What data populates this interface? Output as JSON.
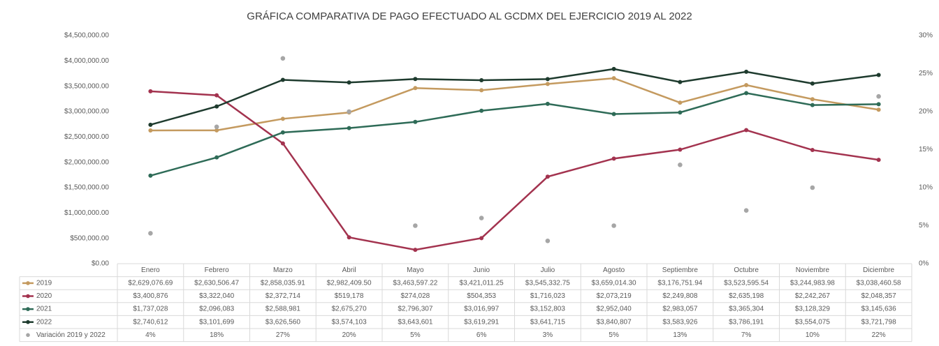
{
  "chart_data": {
    "type": "line",
    "title": "GRÁFICA COMPARATIVA DE PAGO EFECTUADO AL GCDMX DEL EJERCICIO 2019 AL 2022",
    "categories": [
      "Enero",
      "Febrero",
      "Marzo",
      "Abril",
      "Mayo",
      "Junio",
      "Julio",
      "Agosto",
      "Septiembre",
      "Octubre",
      "Noviembre",
      "Diciembre"
    ],
    "ylim": [
      0,
      4500000
    ],
    "yticks": [
      {
        "value": 0,
        "label": "$0.00"
      },
      {
        "value": 500000,
        "label": "$500,000.00"
      },
      {
        "value": 1000000,
        "label": "$1,000,000.00"
      },
      {
        "value": 1500000,
        "label": "$1,500,000.00"
      },
      {
        "value": 2000000,
        "label": "$2,000,000.00"
      },
      {
        "value": 2500000,
        "label": "$2,500,000.00"
      },
      {
        "value": 3000000,
        "label": "$3,000,000.00"
      },
      {
        "value": 3500000,
        "label": "$3,500,000.00"
      },
      {
        "value": 4000000,
        "label": "$4,000,000.00"
      },
      {
        "value": 4500000,
        "label": "$4,500,000.00"
      }
    ],
    "y2lim": [
      0,
      30
    ],
    "y2ticks": [
      {
        "value": 0,
        "label": "0%"
      },
      {
        "value": 5,
        "label": "5%"
      },
      {
        "value": 10,
        "label": "10%"
      },
      {
        "value": 15,
        "label": "15%"
      },
      {
        "value": 20,
        "label": "20%"
      },
      {
        "value": 25,
        "label": "25%"
      },
      {
        "value": 30,
        "label": "30%"
      }
    ],
    "data_table": true,
    "series": [
      {
        "name": "2019",
        "color": "#c49a5f",
        "values": [
          2629076.69,
          2630506.47,
          2858035.91,
          2982409.5,
          3463597.22,
          3421011.25,
          3545332.75,
          3659014.3,
          3176751.94,
          3523595.54,
          3244983.98,
          3038460.58
        ],
        "value_labels": [
          "$2,629,076.69",
          "$2,630,506.47",
          "$2,858,035.91",
          "$2,982,409.50",
          "$3,463,597.22",
          "$3,421,011.25",
          "$3,545,332.75",
          "$3,659,014.30",
          "$3,176,751.94",
          "$3,523,595.54",
          "$3,244,983.98",
          "$3,038,460.58"
        ]
      },
      {
        "name": "2020",
        "color": "#a3334f",
        "values": [
          3400876,
          3322040,
          2372714,
          519178,
          274028,
          504353,
          1716023,
          2073219,
          2249808,
          2635198,
          2242267,
          2048357
        ],
        "value_labels": [
          "$3,400,876",
          "$3,322,040",
          "$2,372,714",
          "$519,178",
          "$274,028",
          "$504,353",
          "$1,716,023",
          "$2,073,219",
          "$2,249,808",
          "$2,635,198",
          "$2,242,267",
          "$2,048,357"
        ]
      },
      {
        "name": "2021",
        "color": "#2e6b57",
        "values": [
          1737028,
          2096083,
          2588981,
          2675270,
          2796307,
          3016997,
          3152803,
          2952040,
          2983057,
          3365304,
          3128329,
          3145636
        ],
        "value_labels": [
          "$1,737,028",
          "$2,096,083",
          "$2,588,981",
          "$2,675,270",
          "$2,796,307",
          "$3,016,997",
          "$3,152,803",
          "$2,952,040",
          "$2,983,057",
          "$3,365,304",
          "$3,128,329",
          "$3,145,636"
        ]
      },
      {
        "name": "2022",
        "color": "#1e3b2e",
        "values": [
          2740612,
          3101699,
          3626560,
          3574103,
          3643601,
          3619291,
          3641715,
          3840807,
          3583926,
          3786191,
          3554075,
          3721798
        ],
        "value_labels": [
          "$2,740,612",
          "$3,101,699",
          "$3,626,560",
          "$3,574,103",
          "$3,643,601",
          "$3,619,291",
          "$3,641,715",
          "$3,840,807",
          "$3,583,926",
          "$3,786,191",
          "$3,554,075",
          "$3,721,798"
        ]
      },
      {
        "name": "Variación 2019 y 2022",
        "color": "#a6a6a6",
        "axis": "y2",
        "markers_only": true,
        "values": [
          4,
          18,
          27,
          20,
          5,
          6,
          3,
          5,
          13,
          7,
          10,
          22
        ],
        "value_labels": [
          "4%",
          "18%",
          "27%",
          "20%",
          "5%",
          "6%",
          "3%",
          "5%",
          "13%",
          "7%",
          "10%",
          "22%"
        ]
      }
    ]
  }
}
